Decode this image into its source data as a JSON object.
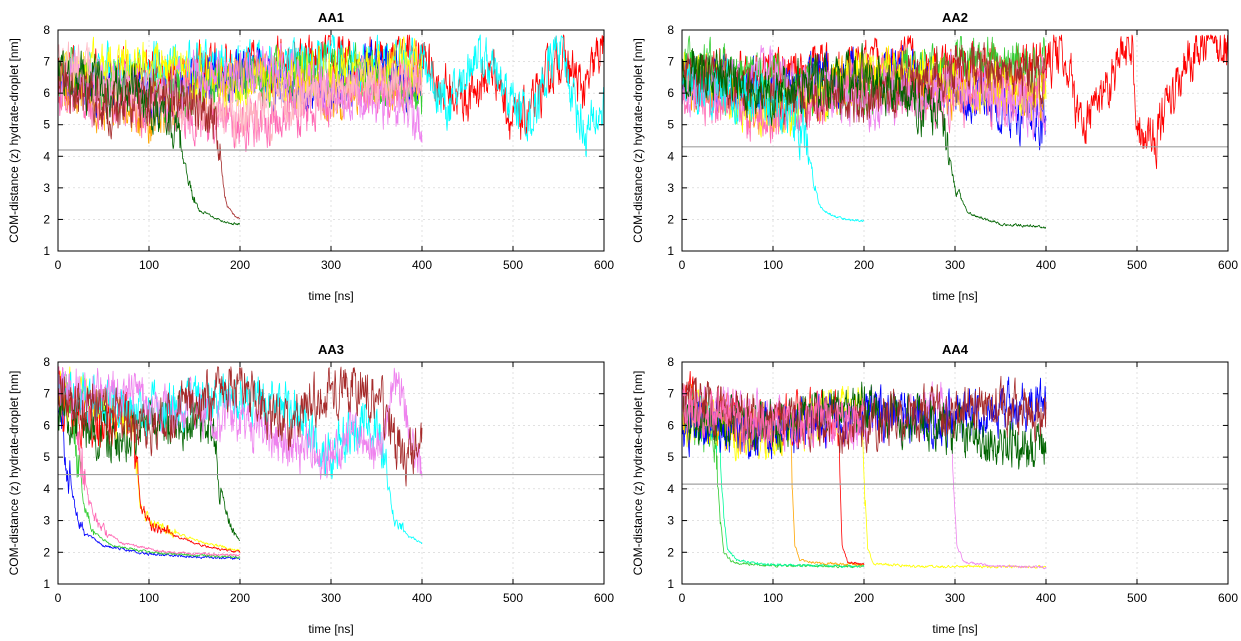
{
  "chart_data": [
    {
      "type": "line",
      "title": "AA1",
      "xlabel": "time [ns]",
      "ylabel": "COM-distance (z) hydrate-droplet [nm]",
      "xlim": [
        0,
        600
      ],
      "ylim": [
        1,
        8
      ],
      "xticks": [
        "0",
        "100",
        "200",
        "300",
        "400",
        "500",
        "600"
      ],
      "yticks": [
        "1",
        "2",
        "3",
        "4",
        "5",
        "6",
        "7",
        "8"
      ],
      "grid": true,
      "threshold": 4.2,
      "series": [
        {
          "color": "#ff0000",
          "x": [
            0,
            200,
            400,
            420,
            450,
            480,
            500,
            520,
            550,
            580,
            600
          ],
          "y": [
            6.5,
            6.8,
            7.2,
            6.2,
            5.8,
            6.8,
            5.0,
            5.4,
            7.2,
            6.0,
            7.8
          ]
        },
        {
          "color": "#00ffff",
          "x": [
            0,
            200,
            400,
            430,
            460,
            490,
            520,
            550,
            580,
            600
          ],
          "y": [
            6.6,
            6.9,
            7.0,
            5.5,
            7.4,
            6.0,
            5.2,
            7.6,
            4.6,
            5.6
          ]
        },
        {
          "color": "#0000ff",
          "x": [
            0,
            100,
            200,
            300,
            350,
            400
          ],
          "y": [
            6.4,
            5.8,
            6.6,
            6.0,
            6.8,
            6.2
          ]
        },
        {
          "color": "#ffa500",
          "x": [
            0,
            100,
            200,
            300,
            400
          ],
          "y": [
            6.2,
            5.2,
            6.6,
            6.0,
            6.5
          ]
        },
        {
          "color": "#32cd32",
          "x": [
            0,
            100,
            200,
            300,
            400
          ],
          "y": [
            6.8,
            5.8,
            6.4,
            6.8,
            6.0
          ]
        },
        {
          "color": "#ffff00",
          "x": [
            0,
            100,
            200,
            300,
            400
          ],
          "y": [
            6.5,
            7.0,
            6.2,
            6.6,
            6.8
          ]
        },
        {
          "color": "#ff69b4",
          "x": [
            0,
            100,
            200,
            300,
            400
          ],
          "y": [
            6.0,
            5.5,
            5.0,
            5.8,
            6.4
          ]
        },
        {
          "color": "#ee82ee",
          "x": [
            0,
            100,
            200,
            300,
            400
          ],
          "y": [
            6.6,
            6.0,
            6.8,
            6.2,
            5.2
          ]
        },
        {
          "color": "#ffb6c1",
          "x": [
            0,
            100,
            200,
            300,
            400
          ],
          "y": [
            7.0,
            5.8,
            5.2,
            6.0,
            6.6
          ]
        },
        {
          "color": "#006400",
          "x": [
            0,
            50,
            100,
            128,
            135,
            145,
            155,
            170,
            185,
            200
          ],
          "y": [
            6.6,
            6.2,
            6.0,
            4.8,
            4.2,
            3.0,
            2.3,
            2.1,
            1.9,
            1.85
          ]
        },
        {
          "color": "#a52a2a",
          "x": [
            0,
            60,
            120,
            172,
            178,
            182,
            186,
            195,
            200
          ],
          "y": [
            6.5,
            5.4,
            6.0,
            5.2,
            4.3,
            3.0,
            2.4,
            2.1,
            2.0
          ]
        }
      ]
    },
    {
      "type": "line",
      "title": "AA2",
      "xlabel": "time [ns]",
      "ylabel": "COM-distance (z) hydrate-droplet [nm]",
      "xlim": [
        0,
        600
      ],
      "ylim": [
        1,
        8
      ],
      "xticks": [
        "0",
        "100",
        "200",
        "300",
        "400",
        "500",
        "600"
      ],
      "yticks": [
        "1",
        "2",
        "3",
        "4",
        "5",
        "6",
        "7",
        "8"
      ],
      "grid": true,
      "threshold": 4.3,
      "series": [
        {
          "color": "#ff0000",
          "x": [
            0,
            200,
            400,
            420,
            440,
            470,
            495,
            500,
            520,
            550,
            580,
            600
          ],
          "y": [
            6.5,
            6.8,
            6.8,
            7.5,
            4.8,
            6.5,
            7.8,
            5.0,
            4.6,
            6.6,
            7.8,
            7.2
          ]
        },
        {
          "color": "#0000ff",
          "x": [
            0,
            100,
            200,
            300,
            400
          ],
          "y": [
            6.6,
            6.0,
            6.8,
            6.2,
            5.0
          ]
        },
        {
          "color": "#ffa500",
          "x": [
            0,
            100,
            200,
            300,
            400
          ],
          "y": [
            6.4,
            5.4,
            6.6,
            6.0,
            5.8
          ]
        },
        {
          "color": "#32cd32",
          "x": [
            0,
            100,
            200,
            300,
            400
          ],
          "y": [
            7.0,
            6.4,
            6.0,
            7.0,
            6.8
          ]
        },
        {
          "color": "#ffff00",
          "x": [
            0,
            100,
            200,
            300,
            400
          ],
          "y": [
            6.8,
            5.2,
            6.8,
            6.4,
            6.0
          ]
        },
        {
          "color": "#ff69b4",
          "x": [
            0,
            100,
            200,
            300,
            400
          ],
          "y": [
            6.2,
            5.0,
            6.4,
            5.6,
            6.2
          ]
        },
        {
          "color": "#ee82ee",
          "x": [
            0,
            100,
            200,
            300,
            400
          ],
          "y": [
            6.0,
            6.6,
            5.6,
            6.4,
            5.4
          ]
        },
        {
          "color": "#a52a2a",
          "x": [
            0,
            100,
            200,
            300,
            400
          ],
          "y": [
            6.6,
            6.0,
            5.8,
            6.8,
            6.4
          ]
        },
        {
          "color": "#00ffff",
          "x": [
            0,
            60,
            120,
            138,
            145,
            152,
            160,
            180,
            200
          ],
          "y": [
            6.4,
            6.0,
            5.4,
            4.5,
            3.2,
            2.4,
            2.2,
            2.0,
            1.95
          ]
        },
        {
          "color": "#006400",
          "x": [
            0,
            100,
            200,
            285,
            292,
            300,
            315,
            350,
            400
          ],
          "y": [
            6.8,
            6.0,
            6.6,
            5.2,
            4.4,
            3.0,
            2.2,
            1.85,
            1.75
          ]
        }
      ]
    },
    {
      "type": "line",
      "title": "AA3",
      "xlabel": "time [ns]",
      "ylabel": "COM-distance (z) hydrate-droplet [nm]",
      "xlim": [
        0,
        600
      ],
      "ylim": [
        1,
        8
      ],
      "xticks": [
        "0",
        "100",
        "200",
        "300",
        "400",
        "500",
        "600"
      ],
      "yticks": [
        "1",
        "2",
        "3",
        "4",
        "5",
        "6",
        "7",
        "8"
      ],
      "grid": true,
      "threshold": 4.45,
      "series": [
        {
          "color": "#0000ff",
          "x": [
            0,
            8,
            14,
            20,
            30,
            50,
            100,
            150,
            200
          ],
          "y": [
            6.2,
            5.5,
            4.2,
            3.2,
            2.6,
            2.2,
            1.95,
            1.85,
            1.8
          ]
        },
        {
          "color": "#32cd32",
          "x": [
            0,
            15,
            22,
            28,
            40,
            60,
            100,
            150,
            200
          ],
          "y": [
            7.2,
            6.4,
            5.0,
            3.5,
            2.6,
            2.2,
            2.0,
            1.9,
            1.85
          ]
        },
        {
          "color": "#ff69b4",
          "x": [
            0,
            20,
            26,
            32,
            45,
            70,
            120,
            200
          ],
          "y": [
            7.4,
            6.6,
            5.0,
            3.8,
            2.8,
            2.3,
            2.0,
            1.9
          ]
        },
        {
          "color": "#ffff00",
          "x": [
            0,
            50,
            80,
            85,
            90,
            100,
            130,
            160,
            200
          ],
          "y": [
            7.0,
            6.5,
            6.4,
            4.8,
            3.5,
            3.0,
            2.6,
            2.3,
            2.05
          ]
        },
        {
          "color": "#ff0000",
          "x": [
            0,
            50,
            78,
            84,
            90,
            100,
            130,
            160,
            200
          ],
          "y": [
            6.8,
            6.0,
            6.8,
            5.2,
            3.6,
            2.9,
            2.5,
            2.2,
            2.0
          ]
        },
        {
          "color": "#006400",
          "x": [
            0,
            60,
            120,
            170,
            176,
            182,
            190,
            200
          ],
          "y": [
            6.5,
            5.5,
            6.2,
            6.0,
            4.8,
            3.6,
            2.8,
            2.35
          ]
        },
        {
          "color": "#00ffff",
          "x": [
            0,
            100,
            200,
            250,
            300,
            340,
            352,
            360,
            370,
            385,
            400
          ],
          "y": [
            7.0,
            6.4,
            7.0,
            6.6,
            5.0,
            6.4,
            5.8,
            4.5,
            3.0,
            2.5,
            2.3
          ]
        },
        {
          "color": "#ee82ee",
          "x": [
            0,
            100,
            200,
            250,
            300,
            330,
            350,
            370,
            400
          ],
          "y": [
            7.2,
            6.6,
            6.2,
            5.4,
            5.0,
            6.0,
            5.0,
            7.6,
            4.8
          ]
        },
        {
          "color": "#a52a2a",
          "x": [
            0,
            100,
            200,
            250,
            300,
            350,
            380,
            400
          ],
          "y": [
            7.0,
            6.0,
            7.4,
            6.0,
            7.2,
            7.0,
            5.0,
            5.2
          ]
        }
      ]
    },
    {
      "type": "line",
      "title": "AA4",
      "xlabel": "time [ns]",
      "ylabel": "COM-distance (z) hydrate-droplet [nm]",
      "xlim": [
        0,
        600
      ],
      "ylim": [
        1,
        8
      ],
      "xticks": [
        "0",
        "100",
        "200",
        "300",
        "400",
        "500",
        "600"
      ],
      "yticks": [
        "1",
        "2",
        "3",
        "4",
        "5",
        "6",
        "7",
        "8"
      ],
      "grid": true,
      "threshold": 4.15,
      "series": [
        {
          "color": "#32cd32",
          "x": [
            0,
            30,
            38,
            42,
            46,
            55,
            80,
            120,
            200
          ],
          "y": [
            6.4,
            5.8,
            4.8,
            3.0,
            2.0,
            1.7,
            1.6,
            1.58,
            1.55
          ]
        },
        {
          "color": "#00fa9a",
          "x": [
            0,
            35,
            42,
            46,
            50,
            60,
            90,
            140,
            200
          ],
          "y": [
            6.6,
            6.2,
            5.0,
            3.2,
            2.1,
            1.75,
            1.62,
            1.58,
            1.56
          ]
        },
        {
          "color": "#ffa500",
          "x": [
            0,
            60,
            118,
            121,
            124,
            130,
            150,
            200
          ],
          "y": [
            6.4,
            5.8,
            6.0,
            4.4,
            2.2,
            1.75,
            1.65,
            1.6
          ]
        },
        {
          "color": "#ff0000",
          "x": [
            0,
            80,
            170,
            173,
            176,
            182,
            200
          ],
          "y": [
            6.8,
            6.0,
            6.6,
            4.5,
            2.2,
            1.7,
            1.6
          ]
        },
        {
          "color": "#ffff00",
          "x": [
            0,
            100,
            198,
            201,
            204,
            210,
            250,
            300,
            350,
            400
          ],
          "y": [
            6.2,
            5.6,
            6.8,
            4.5,
            2.2,
            1.65,
            1.56,
            1.55,
            1.55,
            1.54
          ]
        },
        {
          "color": "#ee82ee",
          "x": [
            0,
            150,
            295,
            298,
            302,
            310,
            340,
            400
          ],
          "y": [
            6.6,
            6.0,
            6.4,
            4.6,
            2.2,
            1.7,
            1.56,
            1.52
          ]
        },
        {
          "color": "#0000ff",
          "x": [
            0,
            100,
            200,
            300,
            400
          ],
          "y": [
            6.0,
            5.8,
            6.4,
            6.2,
            6.8
          ]
        },
        {
          "color": "#006400",
          "x": [
            0,
            100,
            200,
            300,
            400
          ],
          "y": [
            6.4,
            6.0,
            6.6,
            5.8,
            5.2
          ]
        },
        {
          "color": "#a52a2a",
          "x": [
            0,
            100,
            200,
            300,
            400
          ],
          "y": [
            6.8,
            6.2,
            6.0,
            6.6,
            6.4
          ]
        },
        {
          "color": "#ff69b4",
          "x": [
            0,
            100,
            200
          ],
          "y": [
            6.6,
            6.0,
            6.4
          ]
        }
      ]
    }
  ]
}
